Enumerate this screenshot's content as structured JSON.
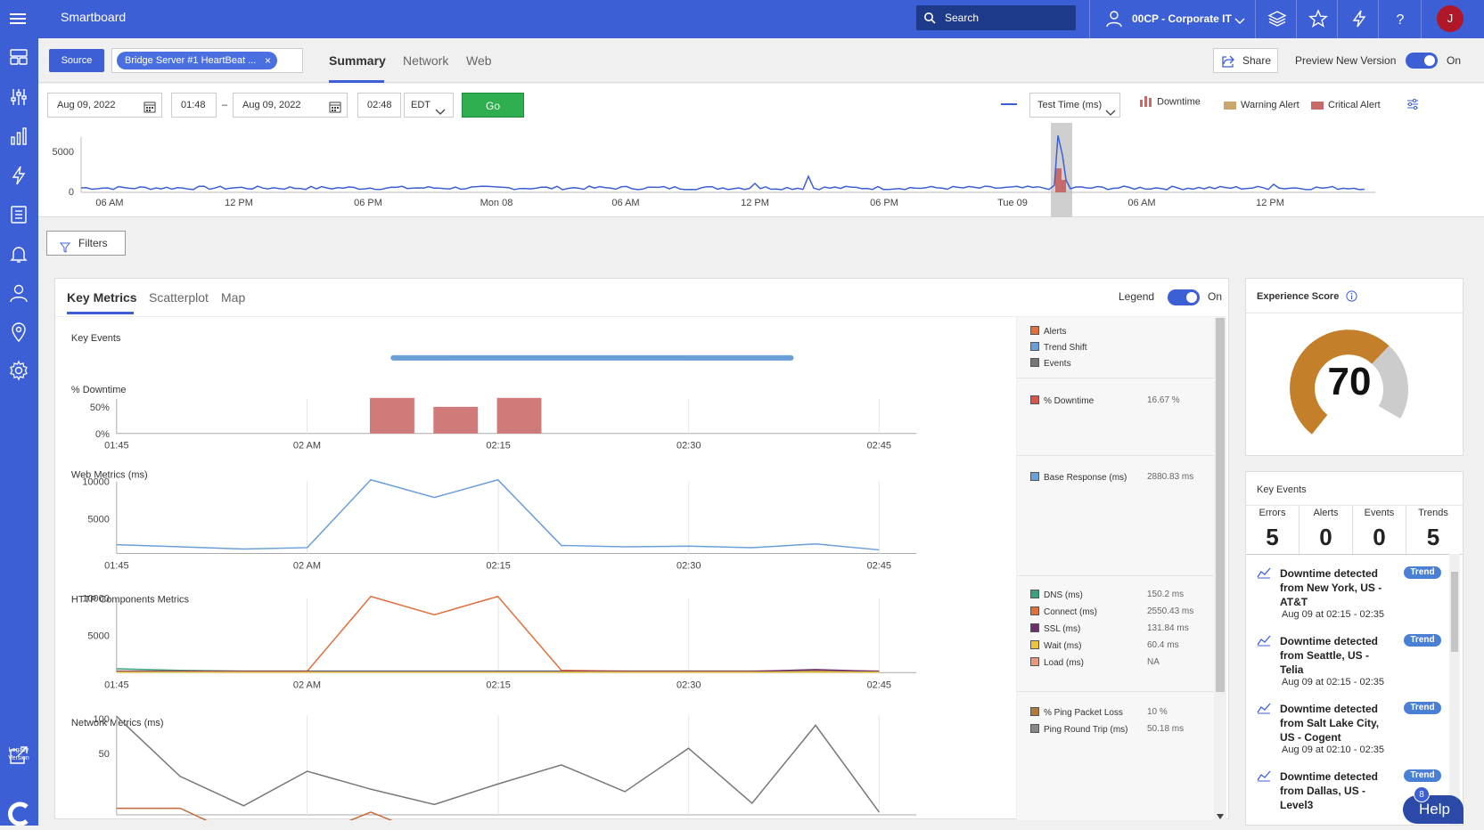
{
  "app": {
    "title": "Smartboard"
  },
  "search": {
    "label": "Search"
  },
  "account": {
    "label": "00CP - Corporate IT"
  },
  "avatar": {
    "initial": "J"
  },
  "subbar": {
    "source_label": "Source",
    "chip_label": "Bridge Server #1 HeartBeat ...",
    "chip_close": "×",
    "tabs": [
      {
        "label": "Summary",
        "active": true
      },
      {
        "label": "Network",
        "active": false
      },
      {
        "label": "Web",
        "active": false
      }
    ],
    "share_label": "Share",
    "preview_label": "Preview New Version",
    "preview_state": "On"
  },
  "daterow": {
    "start_date": "Aug 09, 2022",
    "start_time": "01:48",
    "dash": "–",
    "end_date": "Aug 09, 2022",
    "end_time": "02:48",
    "timezone": "EDT",
    "go_label": "Go",
    "metric_select": "Test Time (ms)",
    "legend": [
      {
        "label": "Downtime",
        "color": "#c96a6a"
      },
      {
        "label": "Warning Alert",
        "color": "#c9a66b"
      },
      {
        "label": "Critical Alert",
        "color": "#c96a6a"
      }
    ]
  },
  "overview": {
    "y_ticks": [
      "5000",
      "0"
    ],
    "x_ticks": [
      "06 AM",
      "12 PM",
      "06 PM",
      "Mon 08",
      "06 AM",
      "12 PM",
      "06 PM",
      "Tue 09",
      "06 AM",
      "12 PM"
    ],
    "line_color": "#3d5fd6"
  },
  "filters": {
    "label": "Filters"
  },
  "keymetrics": {
    "tabs": [
      {
        "label": "Key Metrics",
        "active": true
      },
      {
        "label": "Scatterplot",
        "active": false
      },
      {
        "label": "Map",
        "active": false
      }
    ],
    "legend_label": "Legend",
    "legend_state": "On",
    "x_ticks": [
      "01:45",
      "02 AM",
      "02:15",
      "02:30",
      "02:45"
    ],
    "sections": {
      "key_events": "Key Events",
      "downtime": "% Downtime",
      "web": "Web Metrics (ms)",
      "http": "HTTP Components Metrics",
      "network": "Network Metrics (ms)"
    },
    "downtime_ticks": [
      "50%",
      "0%"
    ],
    "web_ticks": [
      "10000",
      "5000"
    ],
    "http_ticks": [
      "10000",
      "5000"
    ],
    "network_ticks": [
      "100",
      "50"
    ]
  },
  "chart_data": [
    {
      "type": "bar",
      "title": "% Downtime",
      "categories": [
        "02:05",
        "02:10",
        "02:15"
      ],
      "values": [
        66.7,
        50,
        66.7
      ],
      "ylim": [
        0,
        70
      ],
      "color": "#d17a7a"
    },
    {
      "type": "line",
      "title": "Web Metrics (ms)",
      "x": [
        "01:45",
        "01:50",
        "01:55",
        "02:00",
        "02:05",
        "02:10",
        "02:15",
        "02:20",
        "02:25",
        "02:30",
        "02:35",
        "02:40",
        "02:45"
      ],
      "series": [
        {
          "name": "Base Response (ms)",
          "color": "#6a9fd8",
          "values": [
            1200,
            900,
            600,
            800,
            10000,
            7600,
            10000,
            1100,
            900,
            1000,
            800,
            1300,
            500
          ]
        }
      ],
      "ylim": [
        0,
        10500
      ]
    },
    {
      "type": "line",
      "title": "HTTP Components Metrics",
      "x": [
        "01:45",
        "01:50",
        "01:55",
        "02:00",
        "02:05",
        "02:10",
        "02:15",
        "02:20",
        "02:25",
        "02:30",
        "02:35",
        "02:40",
        "02:45"
      ],
      "series": [
        {
          "name": "DNS (ms)",
          "color": "#3aa17e",
          "values": [
            500,
            300,
            200,
            200,
            200,
            200,
            200,
            200,
            200,
            200,
            200,
            200,
            200
          ]
        },
        {
          "name": "Connect (ms)",
          "color": "#e07040",
          "values": [
            200,
            200,
            200,
            200,
            10000,
            7600,
            10000,
            300,
            200,
            200,
            200,
            300,
            200
          ]
        },
        {
          "name": "SSL (ms)",
          "color": "#6b2d6b",
          "values": [
            150,
            150,
            150,
            150,
            150,
            150,
            150,
            150,
            150,
            150,
            150,
            400,
            150
          ]
        },
        {
          "name": "Wait (ms)",
          "color": "#e8c440",
          "values": [
            60,
            60,
            60,
            60,
            60,
            60,
            60,
            60,
            60,
            60,
            60,
            60,
            60
          ]
        }
      ],
      "ylim": [
        0,
        10500
      ]
    },
    {
      "type": "line",
      "title": "Network Metrics (ms)",
      "x": [
        "01:45",
        "01:50",
        "01:55",
        "02:00",
        "02:05",
        "02:10",
        "02:15",
        "02:20",
        "02:25",
        "02:30",
        "02:35",
        "02:40",
        "02:45"
      ],
      "series": [
        {
          "name": "Ping Round Trip (ms)",
          "color": "#777777",
          "values": [
            105,
            58,
            35,
            62,
            48,
            36,
            52,
            67,
            46,
            80,
            37,
            98,
            30
          ]
        },
        {
          "name": "% Ping Packet Loss",
          "color": "#c56a3a",
          "values": [
            33,
            33,
            10,
            10,
            30,
            10,
            10,
            10,
            10,
            10,
            10,
            20,
            10
          ]
        }
      ],
      "ylim": [
        0,
        110
      ]
    }
  ],
  "legendcol": {
    "top": [
      {
        "label": "Alerts",
        "color": "#e07040"
      },
      {
        "label": "Trend Shift",
        "color": "#6a9fd8"
      },
      {
        "label": "Events",
        "color": "#777777"
      }
    ],
    "downtime": [
      {
        "label": "% Downtime",
        "value": "16.67 %",
        "color": "#d9534f"
      }
    ],
    "web": [
      {
        "label": "Base Response (ms)",
        "value": "2880.83 ms",
        "color": "#6a9fd8"
      }
    ],
    "http": [
      {
        "label": "DNS (ms)",
        "value": "150.2 ms",
        "color": "#3aa17e"
      },
      {
        "label": "Connect (ms)",
        "value": "2550.43 ms",
        "color": "#e07040"
      },
      {
        "label": "SSL (ms)",
        "value": "131.84 ms",
        "color": "#6b2d6b"
      },
      {
        "label": "Wait (ms)",
        "value": "60.4 ms",
        "color": "#e8c440"
      },
      {
        "label": "Load (ms)",
        "value": "NA",
        "color": "#e89a80"
      }
    ],
    "network": [
      {
        "label": "% Ping Packet Loss",
        "value": "10 %",
        "color": "#b07a3a"
      },
      {
        "label": "Ping Round Trip (ms)",
        "value": "50.18 ms",
        "color": "#888888"
      }
    ]
  },
  "experience": {
    "title": "Experience Score",
    "score": "70",
    "fraction": 0.7,
    "color": "#c47f2a",
    "rest_color": "#cccccc"
  },
  "key_events_panel": {
    "title": "Key Events",
    "stats": [
      {
        "label": "Errors",
        "value": "5"
      },
      {
        "label": "Alerts",
        "value": "0"
      },
      {
        "label": "Events",
        "value": "0"
      },
      {
        "label": "Trends",
        "value": "5"
      }
    ],
    "events": [
      {
        "text": "Downtime detected from New York, US - AT&T",
        "when": "Aug 09 at 02:15 - 02:35",
        "badge": "Trend"
      },
      {
        "text": "Downtime detected from Seattle, US - Telia",
        "when": "Aug 09 at 02:15 - 02:35",
        "badge": "Trend"
      },
      {
        "text": "Downtime detected from Salt Lake City, US - Cogent",
        "when": "Aug 09 at 02:10 - 02:35",
        "badge": "Trend"
      },
      {
        "text": "Downtime detected from Dallas, US - Level3",
        "when": "",
        "badge": "Trend"
      }
    ]
  },
  "help": {
    "label": "Help",
    "badge": "8"
  },
  "legacy": {
    "label": "Legacy Version"
  }
}
